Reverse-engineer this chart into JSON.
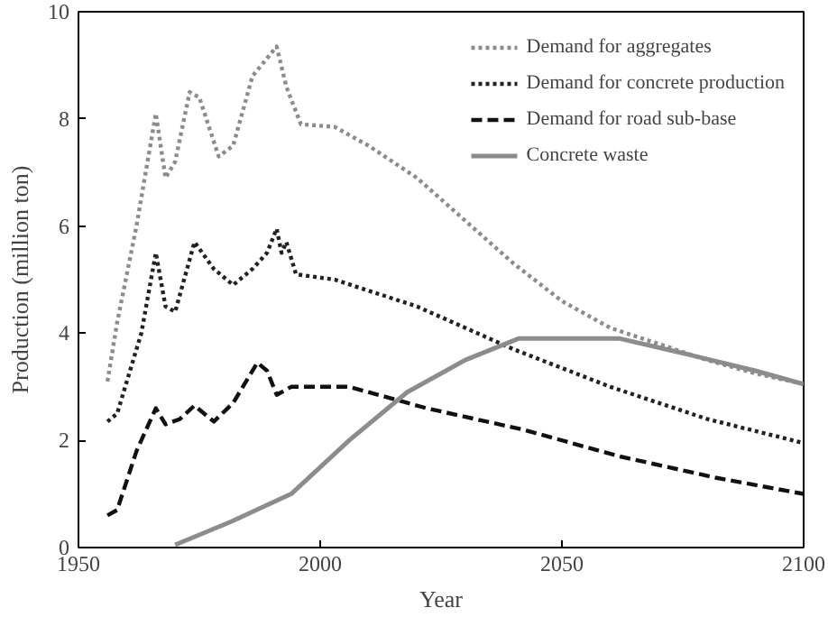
{
  "chart_data": {
    "type": "line",
    "xlabel": "Year",
    "ylabel": "Production (million ton)",
    "xlim": [
      1950,
      2100
    ],
    "ylim": [
      0,
      10
    ],
    "xticks": [
      1950,
      2000,
      2050,
      2100
    ],
    "yticks": [
      0,
      2,
      4,
      6,
      8,
      10
    ],
    "grid": false,
    "legend": "top right",
    "marker": "none",
    "series": [
      {
        "name": "Demand for aggregates",
        "color": "#8c8c8c",
        "line_style": "dotted",
        "x": [
          1956,
          1958,
          1962,
          1966,
          1968,
          1970,
          1973,
          1975,
          1979,
          1982,
          1986,
          1991,
          1993,
          1996,
          2003,
          2010,
          2020,
          2030,
          2040,
          2050,
          2060,
          2070,
          2080,
          2090,
          2100
        ],
        "values": [
          3.1,
          4.2,
          6.0,
          8.1,
          6.9,
          7.2,
          8.5,
          8.4,
          7.3,
          7.5,
          8.8,
          9.35,
          8.6,
          7.9,
          7.85,
          7.5,
          6.9,
          6.1,
          5.3,
          4.6,
          4.1,
          3.8,
          3.5,
          3.25,
          3.05
        ]
      },
      {
        "name": "Demand for concrete production",
        "color": "#222222",
        "line_style": "dotted",
        "x": [
          1956,
          1958,
          1963,
          1966,
          1968,
          1970,
          1974,
          1978,
          1982,
          1986,
          1989,
          1991,
          1992,
          1993,
          1995,
          2003,
          2020,
          2040,
          2060,
          2080,
          2100
        ],
        "values": [
          2.35,
          2.5,
          4.0,
          5.5,
          4.5,
          4.4,
          5.7,
          5.2,
          4.9,
          5.2,
          5.5,
          5.95,
          5.5,
          5.7,
          5.1,
          5.0,
          4.5,
          3.7,
          3.0,
          2.4,
          1.95
        ]
      },
      {
        "name": "Demand for road sub-base",
        "color": "#111111",
        "line_style": "dashed",
        "x": [
          1956,
          1958,
          1962,
          1966,
          1968,
          1971,
          1974,
          1978,
          1982,
          1987,
          1989,
          1991,
          1994,
          2006,
          2022,
          2042,
          2062,
          2082,
          2100
        ],
        "values": [
          0.6,
          0.7,
          1.8,
          2.6,
          2.3,
          2.4,
          2.65,
          2.35,
          2.7,
          3.45,
          3.3,
          2.85,
          3.0,
          3.0,
          2.6,
          2.2,
          1.7,
          1.3,
          1.0
        ]
      },
      {
        "name": "Concrete waste",
        "color": "#8c8c8c",
        "line_style": "solid",
        "x": [
          1970,
          1982,
          1994,
          2006,
          2018,
          2030,
          2041,
          2062,
          2074,
          2090,
          2100
        ],
        "values": [
          0.05,
          0.5,
          1.0,
          2.0,
          2.9,
          3.5,
          3.9,
          3.9,
          3.65,
          3.3,
          3.05
        ]
      }
    ]
  }
}
